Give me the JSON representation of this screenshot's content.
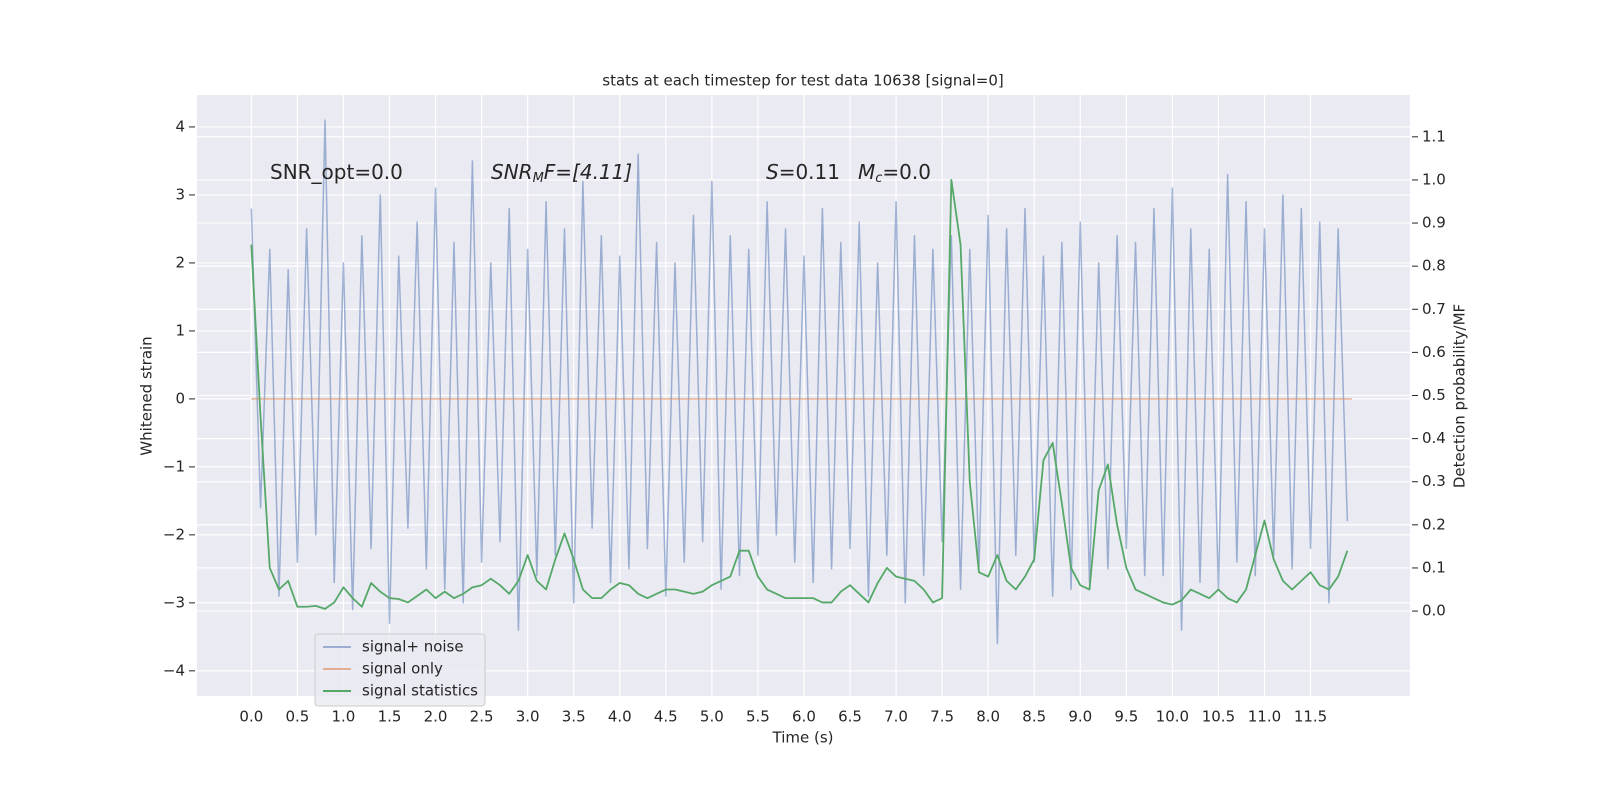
{
  "chart_data": {
    "type": "line",
    "title": "stats at each timestep for test data 10638 [signal=0]",
    "xlabel": "Time (s)",
    "ylabel": "Whitened strain",
    "y2label": "Detection probability/MF",
    "annotations": [
      [
        "SNR_opt=0.0"
      ],
      [
        "SNR",
        "M",
        "F=[4.11]"
      ],
      [
        "S",
        "=0.11"
      ],
      [
        "M",
        "c",
        "=0.0"
      ]
    ],
    "x": [
      0.0,
      0.1,
      0.2,
      0.3,
      0.4,
      0.5,
      0.6,
      0.7,
      0.8,
      0.9,
      1.0,
      1.1,
      1.2,
      1.3,
      1.4,
      1.5,
      1.6,
      1.7,
      1.8,
      1.9,
      2.0,
      2.1,
      2.2,
      2.3,
      2.4,
      2.5,
      2.6,
      2.7,
      2.8,
      2.9,
      3.0,
      3.1,
      3.2,
      3.3,
      3.4,
      3.5,
      3.6,
      3.7,
      3.8,
      3.9,
      4.0,
      4.1,
      4.2,
      4.3,
      4.4,
      4.5,
      4.6,
      4.7,
      4.8,
      4.9,
      5.0,
      5.1,
      5.2,
      5.3,
      5.4,
      5.5,
      5.6,
      5.7,
      5.8,
      5.9,
      6.0,
      6.1,
      6.2,
      6.3,
      6.4,
      6.5,
      6.6,
      6.7,
      6.8,
      6.9,
      7.0,
      7.1,
      7.2,
      7.3,
      7.4,
      7.5,
      7.6,
      7.7,
      7.8,
      7.9,
      8.0,
      8.1,
      8.2,
      8.3,
      8.4,
      8.5,
      8.6,
      8.7,
      8.8,
      8.9,
      9.0,
      9.1,
      9.2,
      9.3,
      9.4,
      9.5,
      9.6,
      9.7,
      9.8,
      9.9,
      10.0,
      10.1,
      10.2,
      10.3,
      10.4,
      10.5,
      10.6,
      10.7,
      10.8,
      10.9,
      11.0,
      11.1,
      11.2,
      11.3,
      11.4,
      11.5,
      11.6,
      11.7,
      11.8,
      11.9
    ],
    "series": [
      {
        "name": "signal+ noise",
        "color": "#4c72b0",
        "values": [
          2.8,
          -1.6,
          2.2,
          -2.9,
          1.9,
          -2.4,
          2.5,
          -2.0,
          4.1,
          -2.7,
          2.0,
          -3.1,
          2.4,
          -2.2,
          3.0,
          -3.3,
          2.1,
          -1.9,
          2.6,
          -2.5,
          3.1,
          -2.8,
          2.3,
          -3.0,
          3.5,
          -2.4,
          2.0,
          -2.1,
          2.8,
          -3.4,
          2.2,
          -2.6,
          2.9,
          -2.3,
          2.5,
          -3.0,
          3.2,
          -1.9,
          2.4,
          -2.7,
          2.1,
          -2.5,
          3.6,
          -2.2,
          2.3,
          -2.9,
          2.0,
          -2.4,
          2.7,
          -2.1,
          3.2,
          -2.8,
          2.4,
          -2.6,
          2.2,
          -2.3,
          2.9,
          -2.0,
          2.5,
          -2.4,
          2.1,
          -2.7,
          2.8,
          -2.5,
          2.3,
          -2.2,
          2.6,
          -2.9,
          2.0,
          -2.3,
          2.9,
          -3.0,
          2.4,
          -2.6,
          2.2,
          -2.1,
          2.4,
          -2.8,
          2.2,
          -2.5,
          2.7,
          -3.6,
          2.5,
          -2.3,
          2.8,
          -2.4,
          2.1,
          -2.9,
          2.3,
          -2.8,
          2.6,
          -2.7,
          2.0,
          -2.5,
          2.4,
          -2.2,
          2.3,
          -2.6,
          2.8,
          -2.6,
          3.1,
          -3.4,
          2.5,
          -2.7,
          2.2,
          -2.8,
          3.3,
          -2.4,
          2.9,
          -2.6,
          2.5,
          -2.3,
          3.0,
          -2.5,
          2.8,
          -2.2,
          2.6,
          -3.0,
          2.5,
          -1.8
        ]
      },
      {
        "name": "signal only",
        "color": "#dd8452",
        "x": [
          0.0,
          11.95
        ],
        "values": [
          0,
          0
        ]
      },
      {
        "name": "signal statistics",
        "color": "#55a868",
        "axis": "y2",
        "values": [
          0.85,
          0.45,
          0.1,
          0.05,
          0.07,
          0.01,
          0.01,
          0.012,
          0.005,
          0.02,
          0.055,
          0.03,
          0.01,
          0.065,
          0.045,
          0.03,
          0.028,
          0.02,
          0.035,
          0.05,
          0.03,
          0.045,
          0.03,
          0.04,
          0.055,
          0.06,
          0.075,
          0.06,
          0.04,
          0.07,
          0.13,
          0.07,
          0.05,
          0.12,
          0.18,
          0.12,
          0.05,
          0.03,
          0.03,
          0.05,
          0.065,
          0.06,
          0.04,
          0.03,
          0.04,
          0.05,
          0.05,
          0.045,
          0.04,
          0.045,
          0.06,
          0.07,
          0.08,
          0.14,
          0.14,
          0.08,
          0.05,
          0.04,
          0.03,
          0.03,
          0.03,
          0.03,
          0.02,
          0.02,
          0.045,
          0.06,
          0.04,
          0.02,
          0.065,
          0.1,
          0.08,
          0.075,
          0.07,
          0.05,
          0.02,
          0.03,
          1.0,
          0.85,
          0.3,
          0.09,
          0.08,
          0.13,
          0.07,
          0.05,
          0.08,
          0.12,
          0.35,
          0.39,
          0.25,
          0.1,
          0.06,
          0.05,
          0.28,
          0.34,
          0.2,
          0.1,
          0.05,
          0.04,
          0.03,
          0.02,
          0.015,
          0.025,
          0.05,
          0.04,
          0.03,
          0.05,
          0.03,
          0.02,
          0.05,
          0.13,
          0.21,
          0.12,
          0.07,
          0.05,
          0.07,
          0.09,
          0.06,
          0.05,
          0.08,
          0.14
        ]
      }
    ],
    "xlim": [
      -0.59,
      12.58
    ],
    "xticks": [
      {
        "value": 0,
        "label": "0.0"
      },
      0.5,
      {
        "value": 1,
        "label": "1.0"
      },
      1.5,
      {
        "value": 2,
        "label": "2.0"
      },
      2.5,
      {
        "value": 3,
        "label": "3.0"
      },
      3.5,
      {
        "value": 4,
        "label": "4.0"
      },
      4.5,
      {
        "value": 5,
        "label": "5.0"
      },
      5.5,
      {
        "value": 6,
        "label": "6.0"
      },
      6.5,
      {
        "value": 7,
        "label": "7.0"
      },
      7.5,
      {
        "value": 8,
        "label": "8.0"
      },
      8.5,
      {
        "value": 9,
        "label": "9.0"
      },
      9.5,
      {
        "value": 10,
        "label": "10.0"
      },
      10.5,
      {
        "value": 11,
        "label": "11.0"
      },
      11.5
    ],
    "ylim": [
      -4.37,
      4.47
    ],
    "yticks": [
      {
        "value": -4,
        "label": "−4"
      },
      {
        "value": -3,
        "label": "−3"
      },
      {
        "value": -2,
        "label": "−2"
      },
      {
        "value": -1,
        "label": "−1"
      },
      0,
      1,
      2,
      3,
      4
    ],
    "y2lim": [
      -0.197,
      1.197
    ],
    "y2ticks": [
      {
        "value": 0,
        "label": "0.0"
      },
      0.1,
      0.2,
      0.3,
      0.4,
      0.5,
      0.6,
      0.7,
      0.8,
      0.9,
      {
        "value": 1,
        "label": "1.0"
      },
      1.1
    ],
    "grid": true,
    "legend": "lower left"
  }
}
